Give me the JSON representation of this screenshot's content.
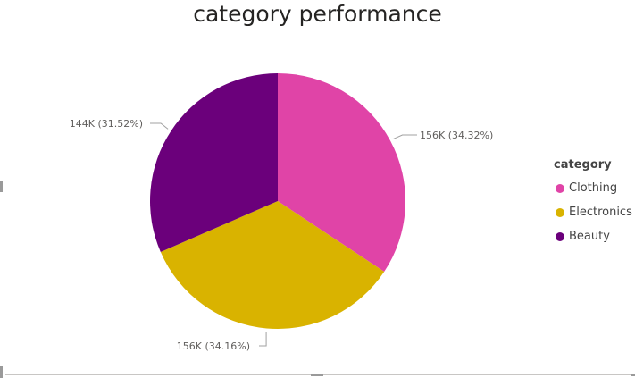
{
  "chart_data": {
    "type": "pie",
    "title": "category performance",
    "legend_title": "category",
    "legend_position": "right",
    "slices": [
      {
        "name": "Clothing",
        "value": 156,
        "label": "156K (34.32%)",
        "percent": 34.32,
        "color": "#e044a7"
      },
      {
        "name": "Electronics",
        "value": 156,
        "label": "156K (34.16%)",
        "percent": 34.16,
        "color": "#d9b300"
      },
      {
        "name": "Beauty",
        "value": 144,
        "label": "144K (31.52%)",
        "percent": 31.52,
        "color": "#6b007b"
      }
    ]
  }
}
